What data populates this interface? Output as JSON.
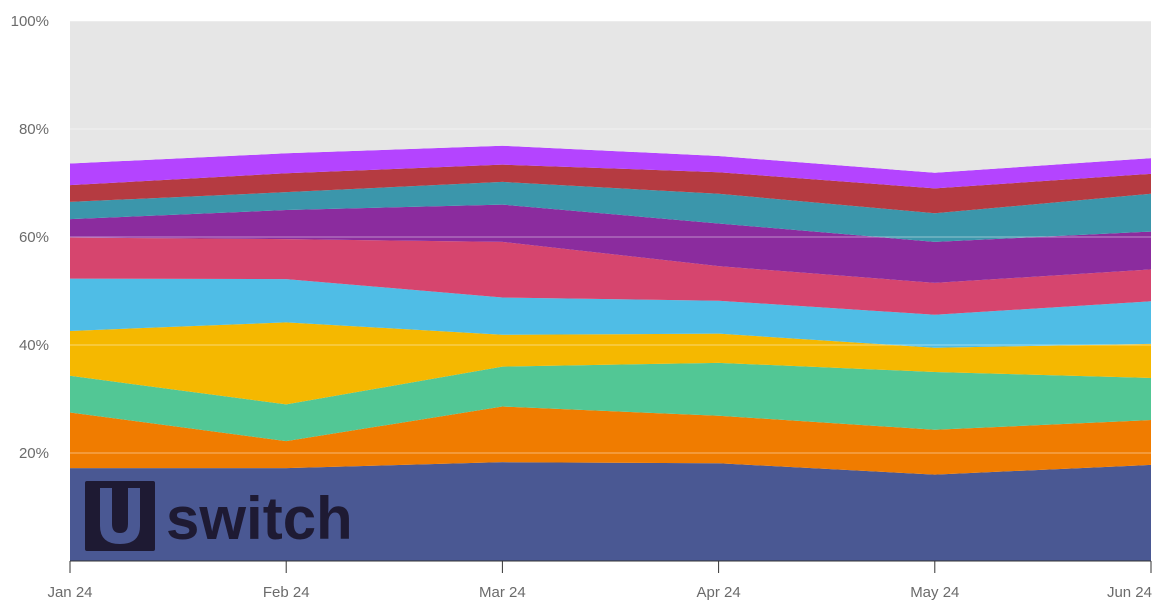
{
  "chart_data": {
    "type": "area",
    "stacked": true,
    "x": [
      "Jan 24",
      "Feb 24",
      "Mar 24",
      "Apr 24",
      "May 24",
      "Jun 24"
    ],
    "ylim": [
      0,
      100
    ],
    "yticks": [
      {
        "value": 20,
        "label": "20%"
      },
      {
        "value": 40,
        "label": "40%"
      },
      {
        "value": 60,
        "label": "60%"
      },
      {
        "value": 80,
        "label": "80%"
      },
      {
        "value": 100,
        "label": "100%"
      }
    ],
    "grid": true,
    "series": [
      {
        "color": "#4a5893",
        "values": [
          17.2,
          17.2,
          18.3,
          18.1,
          16.0,
          17.8
        ]
      },
      {
        "color": "#f07c00",
        "values": [
          10.3,
          5.0,
          10.3,
          8.8,
          8.3,
          8.3
        ]
      },
      {
        "color": "#52c795",
        "values": [
          6.8,
          6.8,
          7.4,
          9.8,
          10.7,
          7.8
        ]
      },
      {
        "color": "#f5b800",
        "values": [
          8.3,
          15.2,
          5.9,
          5.4,
          4.5,
          6.3
        ]
      },
      {
        "color": "#4fbde6",
        "values": [
          9.7,
          8.0,
          6.9,
          6.1,
          6.1,
          7.9
        ]
      },
      {
        "color": "#d6456e",
        "values": [
          7.6,
          7.4,
          10.3,
          6.4,
          5.9,
          5.9
        ]
      },
      {
        "color": "#8b2c9e",
        "values": [
          3.4,
          5.4,
          6.9,
          7.9,
          7.6,
          7.0
        ]
      },
      {
        "color": "#3b96ab",
        "values": [
          3.2,
          3.3,
          4.2,
          5.5,
          5.3,
          7.0
        ]
      },
      {
        "color": "#b53b41",
        "values": [
          3.1,
          3.5,
          3.2,
          4.0,
          4.6,
          3.7
        ]
      },
      {
        "color": "#b444ff",
        "values": [
          4.0,
          3.7,
          3.5,
          3.0,
          2.9,
          2.9
        ]
      },
      {
        "color": "#e6e6e6",
        "values": [
          26.4,
          24.5,
          23.1,
          25.0,
          28.1,
          25.4
        ]
      }
    ]
  },
  "logo": {
    "mark": "U",
    "text": "switch",
    "color": "#1e1a33"
  }
}
